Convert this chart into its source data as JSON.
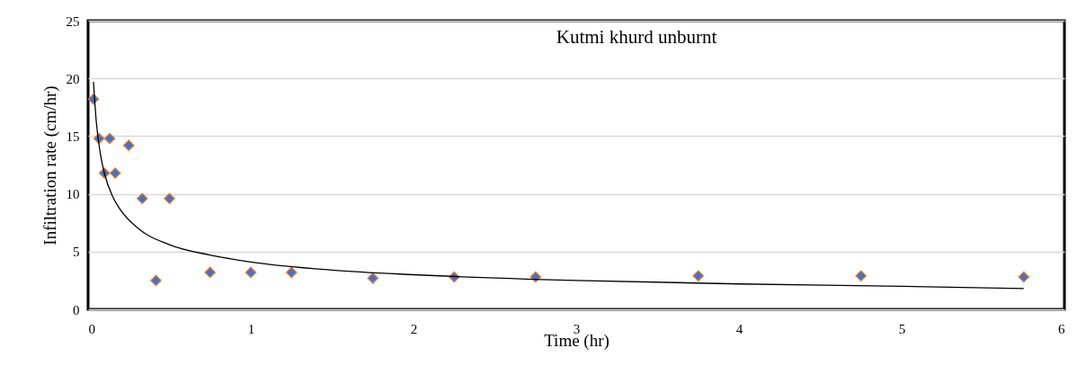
{
  "chart_data": {
    "type": "scatter",
    "title": "Kutmi khurd unburnt",
    "xlabel": "Time (hr)",
    "ylabel": "Infiltration rate (cm/hr)",
    "xlim": [
      0,
      6
    ],
    "xticks": [
      0,
      1,
      2,
      3,
      4,
      5,
      6
    ],
    "ylim": [
      0,
      25
    ],
    "yticks": [
      0,
      5,
      10,
      15,
      20,
      25
    ],
    "grid": "y",
    "marker": "diamond",
    "series": [
      {
        "color": "#4472c4",
        "x": [
          0.033,
          0.067,
          0.1,
          0.133,
          0.167,
          0.25,
          0.333,
          0.417,
          0.5,
          0.75,
          1,
          1.25,
          1.75,
          2.25,
          2.75,
          3.75,
          4.75,
          5.75
        ],
        "values": [
          18.2,
          14.8,
          11.8,
          14.8,
          11.8,
          14.2,
          9.6,
          2.5,
          9.6,
          3.2,
          3.2,
          3.2,
          2.7,
          2.8,
          2.8,
          2.9,
          2.9,
          2.8
        ]
      },
      {
        "type": "line",
        "marker": "none",
        "color": "#000000",
        "x": [
          0.033,
          0.05,
          0.075,
          0.1,
          0.15,
          0.2,
          0.3,
          0.5,
          0.75,
          1,
          1.5,
          2,
          3,
          4,
          5,
          5.75
        ],
        "values": [
          19.7,
          16.3,
          13.5,
          11.8,
          9.8,
          8.6,
          7.1,
          5.6,
          4.7,
          4.1,
          3.4,
          3.0,
          2.5,
          2.2,
          2.0,
          1.8
        ]
      }
    ]
  }
}
